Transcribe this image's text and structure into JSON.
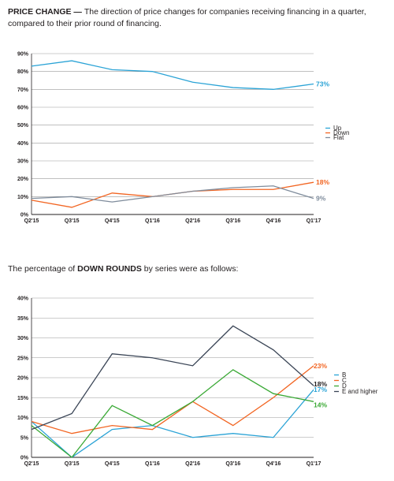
{
  "header": {
    "heading1": "PRICE CHANGE",
    "desc1": "The direction of price changes for companies receiving financing in a quarter, compared to their prior round of financing.",
    "desc2_pre": "The percentage of ",
    "desc2_bold": "DOWN ROUNDS",
    "desc2_post": " by series were as follows:"
  },
  "chart_data": [
    {
      "type": "line",
      "categories": [
        "Q2'15",
        "Q3'15",
        "Q4'15",
        "Q1'16",
        "Q2'16",
        "Q3'16",
        "Q4'16",
        "Q1'17"
      ],
      "ylim": [
        0,
        90
      ],
      "yticks": [
        "0%",
        "10%",
        "20%",
        "30%",
        "40%",
        "50%",
        "60%",
        "70%",
        "80%",
        "90%"
      ],
      "grid": true,
      "legend_position": "right",
      "series": [
        {
          "name": "Up",
          "color": "#2aa3d6",
          "values": [
            83,
            86,
            81,
            80,
            74,
            71,
            70,
            73
          ],
          "end_label": "73%"
        },
        {
          "name": "Down",
          "color": "#f26522",
          "values": [
            8,
            4,
            12,
            10,
            13,
            14,
            14,
            18
          ],
          "end_label": "18%"
        },
        {
          "name": "Flat",
          "color": "#7f8c9c",
          "values": [
            9,
            10,
            7,
            10,
            13,
            15,
            16,
            9
          ],
          "end_label": "9%"
        }
      ]
    },
    {
      "type": "line",
      "categories": [
        "Q2'15",
        "Q3'15",
        "Q4'15",
        "Q1'16",
        "Q2'16",
        "Q3'16",
        "Q4'16",
        "Q1'17"
      ],
      "ylim": [
        0,
        40
      ],
      "yticks": [
        "0%",
        "5%",
        "10%",
        "15%",
        "20%",
        "25%",
        "30%",
        "35%",
        "40%"
      ],
      "grid": true,
      "legend_position": "right",
      "series": [
        {
          "name": "B",
          "color": "#2aa3d6",
          "values": [
            9,
            0,
            7,
            8,
            5,
            6,
            5,
            17
          ],
          "end_label": "17%"
        },
        {
          "name": "C",
          "color": "#f26522",
          "values": [
            9,
            6,
            8,
            7,
            14,
            8,
            15,
            23
          ],
          "end_label": "23%"
        },
        {
          "name": "D",
          "color": "#3aa935",
          "values": [
            8,
            0,
            13,
            8,
            14,
            22,
            16,
            14
          ],
          "end_label": "14%"
        },
        {
          "name": "E and higher",
          "color": "#3a4556",
          "values": [
            7,
            11,
            26,
            25,
            23,
            33,
            27,
            18
          ],
          "end_label": "18%"
        }
      ]
    }
  ]
}
